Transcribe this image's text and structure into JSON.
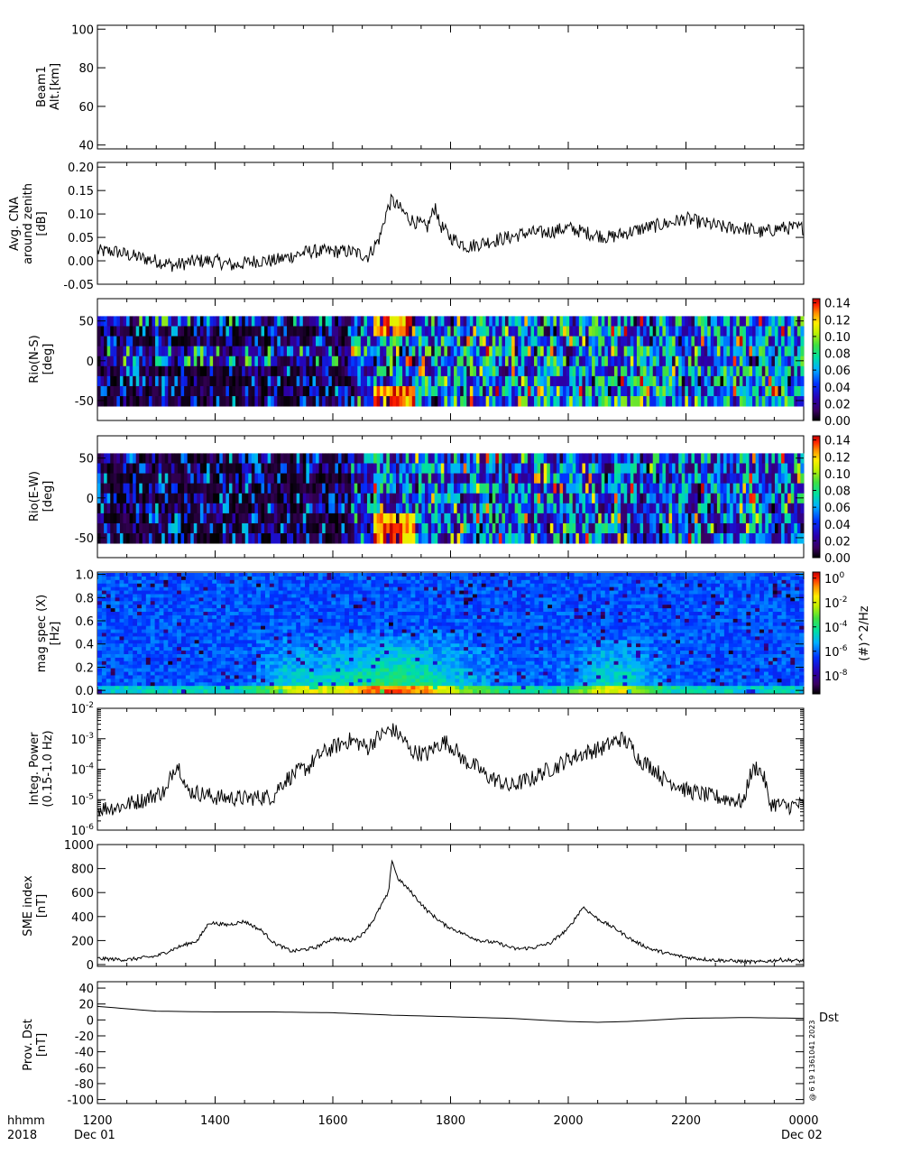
{
  "chart_data": [
    {
      "type": "line",
      "ylabel": [
        "Beam1",
        "Alt.[km]"
      ],
      "yticks": [
        "100",
        "80",
        "60",
        "40"
      ],
      "ylim": [
        38,
        102
      ],
      "series": []
    },
    {
      "type": "line",
      "ylabel": [
        "Avg. CNA",
        "around zenith",
        "[dB]"
      ],
      "yticks": [
        "0.20",
        "0.15",
        "0.10",
        "0.05",
        "0.00",
        "-0.05"
      ],
      "ylim": [
        -0.05,
        0.21
      ],
      "series": [
        {
          "x": [
            12.0,
            12.3,
            12.6,
            13.0,
            13.3,
            13.7,
            14.0,
            14.3,
            14.7,
            15.0,
            15.3,
            15.6,
            16.0,
            16.3,
            16.6,
            16.8,
            16.9,
            17.0,
            17.3,
            17.6,
            17.75,
            17.8,
            18.0,
            18.3,
            18.6,
            19.0,
            19.3,
            19.6,
            20.0,
            20.3,
            20.7,
            21.0,
            21.3,
            21.7,
            22.0,
            22.3,
            22.7,
            23.0,
            23.3,
            23.6,
            24.0
          ],
          "values": [
            0.02,
            0.02,
            0.01,
            0.0,
            -0.01,
            0.0,
            0.0,
            -0.01,
            0.0,
            0.0,
            0.01,
            0.02,
            0.02,
            0.02,
            0.01,
            0.05,
            0.1,
            0.13,
            0.09,
            0.07,
            0.12,
            0.08,
            0.05,
            0.03,
            0.04,
            0.05,
            0.06,
            0.06,
            0.07,
            0.06,
            0.05,
            0.06,
            0.07,
            0.08,
            0.09,
            0.08,
            0.07,
            0.07,
            0.06,
            0.07,
            0.07
          ]
        }
      ]
    },
    {
      "type": "heatmap",
      "ylabel": [
        "Rio(N-S)",
        "[deg]"
      ],
      "yticks": [
        "50",
        "0",
        "-50"
      ],
      "ylim": [
        -75,
        78
      ],
      "colorbar": {
        "ticks": [
          "0.14",
          "0.12",
          "0.10",
          "0.08",
          "0.06",
          "0.04",
          "0.02",
          "0.00"
        ],
        "range": [
          0,
          0.145
        ]
      },
      "quiet_until": 16.7,
      "strong_rows": [
        0,
        1,
        7,
        8
      ],
      "mid_level": 0.06
    },
    {
      "type": "heatmap",
      "ylabel": [
        "Rio(E-W)",
        "[deg]"
      ],
      "yticks": [
        "50",
        "0",
        "-50"
      ],
      "ylim": [
        -75,
        78
      ],
      "colorbar": {
        "ticks": [
          "0.14",
          "0.12",
          "0.10",
          "0.08",
          "0.06",
          "0.04",
          "0.02",
          "0.00"
        ],
        "range": [
          0,
          0.145
        ]
      },
      "quiet_until": 16.7,
      "strong_rows": [
        6,
        7,
        8
      ],
      "mid_level": 0.05
    },
    {
      "type": "heatmap",
      "ylabel": [
        "mag spec (X)",
        "[Hz]"
      ],
      "yticks": [
        "1.0",
        "0.8",
        "0.6",
        "0.4",
        "0.2",
        "0.0"
      ],
      "ylim": [
        -0.03,
        1.02
      ],
      "colorbar": {
        "ticks": [
          "10^0",
          "10^-2",
          "10^-4",
          "10^-6",
          "10^-8"
        ],
        "label": "(#)^2/Hz",
        "range": [
          -9.5,
          0.5
        ]
      }
    },
    {
      "type": "line",
      "yscale": "log",
      "ylabel": [
        "Integ. Power",
        "(0.15-1.0 Hz)"
      ],
      "yticks": [
        "10^-2",
        "10^-3",
        "10^-4",
        "10^-5",
        "10^-6"
      ],
      "ylim": [
        1e-06,
        0.01
      ],
      "series": [
        {
          "x": [
            12.0,
            12.4,
            12.8,
            13.2,
            13.35,
            13.5,
            14.0,
            14.5,
            15.0,
            15.3,
            15.6,
            16.0,
            16.3,
            16.6,
            17.0,
            17.3,
            17.6,
            17.9,
            18.2,
            18.6,
            19.0,
            19.4,
            19.8,
            20.2,
            20.6,
            20.9,
            21.2,
            21.6,
            22.0,
            22.4,
            22.8,
            23.0,
            23.2,
            23.4,
            23.7,
            24.0
          ],
          "values": [
            5e-06,
            6e-06,
            1e-05,
            2e-05,
            0.00015,
            2e-05,
            1.2e-05,
            1.1e-05,
            1.3e-05,
            6e-05,
            0.00012,
            0.0005,
            0.0009,
            0.0005,
            0.002,
            0.0004,
            0.0003,
            0.0008,
            0.0002,
            6e-05,
            2.5e-05,
            5e-05,
            0.00012,
            0.0003,
            0.0005,
            0.001,
            0.0002,
            5e-05,
            2e-05,
            1.3e-05,
            1e-05,
            8e-06,
            0.00012,
            8e-06,
            6e-06,
            7e-06
          ]
        }
      ]
    },
    {
      "type": "line",
      "ylabel": [
        "SME index",
        "[nT]"
      ],
      "yticks": [
        "1000",
        "800",
        "600",
        "400",
        "200",
        "0"
      ],
      "ylim": [
        -15,
        1000
      ],
      "series": [
        {
          "x": [
            12.0,
            12.5,
            13.0,
            13.4,
            13.7,
            13.9,
            14.2,
            14.5,
            14.8,
            15.0,
            15.3,
            15.7,
            16.0,
            16.3,
            16.5,
            16.7,
            16.85,
            16.95,
            17.0,
            17.1,
            17.3,
            17.6,
            17.9,
            18.2,
            18.5,
            18.8,
            19.1,
            19.4,
            19.7,
            20.0,
            20.25,
            20.5,
            20.8,
            21.1,
            21.4,
            21.7,
            22.0,
            22.4,
            22.8,
            23.2,
            23.6,
            24.0
          ],
          "values": [
            50,
            40,
            70,
            150,
            200,
            350,
            330,
            360,
            280,
            180,
            110,
            140,
            220,
            200,
            250,
            380,
            520,
            600,
            880,
            720,
            620,
            450,
            330,
            260,
            200,
            180,
            130,
            140,
            180,
            300,
            480,
            380,
            300,
            200,
            130,
            90,
            60,
            40,
            30,
            20,
            40,
            30
          ]
        }
      ]
    },
    {
      "type": "line",
      "ylabel": [
        "Prov. Dst",
        "[nT]"
      ],
      "yticks": [
        "40",
        "20",
        "0",
        "-20",
        "-40",
        "-60",
        "-80",
        "-100"
      ],
      "ylim": [
        -105,
        48
      ],
      "legend": "Dst",
      "series": [
        {
          "name": "Dst",
          "x": [
            12.0,
            13.0,
            14.0,
            15.0,
            16.0,
            17.0,
            18.0,
            19.0,
            20.0,
            20.5,
            21.0,
            22.0,
            23.0,
            24.0
          ],
          "values": [
            17,
            11,
            10,
            10,
            9,
            6,
            4,
            2,
            -2,
            -3,
            -2,
            2,
            3,
            2
          ]
        }
      ]
    }
  ],
  "xaxis": {
    "range": [
      12,
      24
    ],
    "ticks": [
      "1200",
      "1400",
      "1600",
      "1800",
      "2000",
      "2200",
      "0000"
    ],
    "label_hhmm": "hhmm",
    "label_year": "2018",
    "date_start": "Dec 01",
    "date_end": "Dec 02"
  },
  "side_note": "Dst",
  "stamp": "@ 6 19 1361041 2023"
}
